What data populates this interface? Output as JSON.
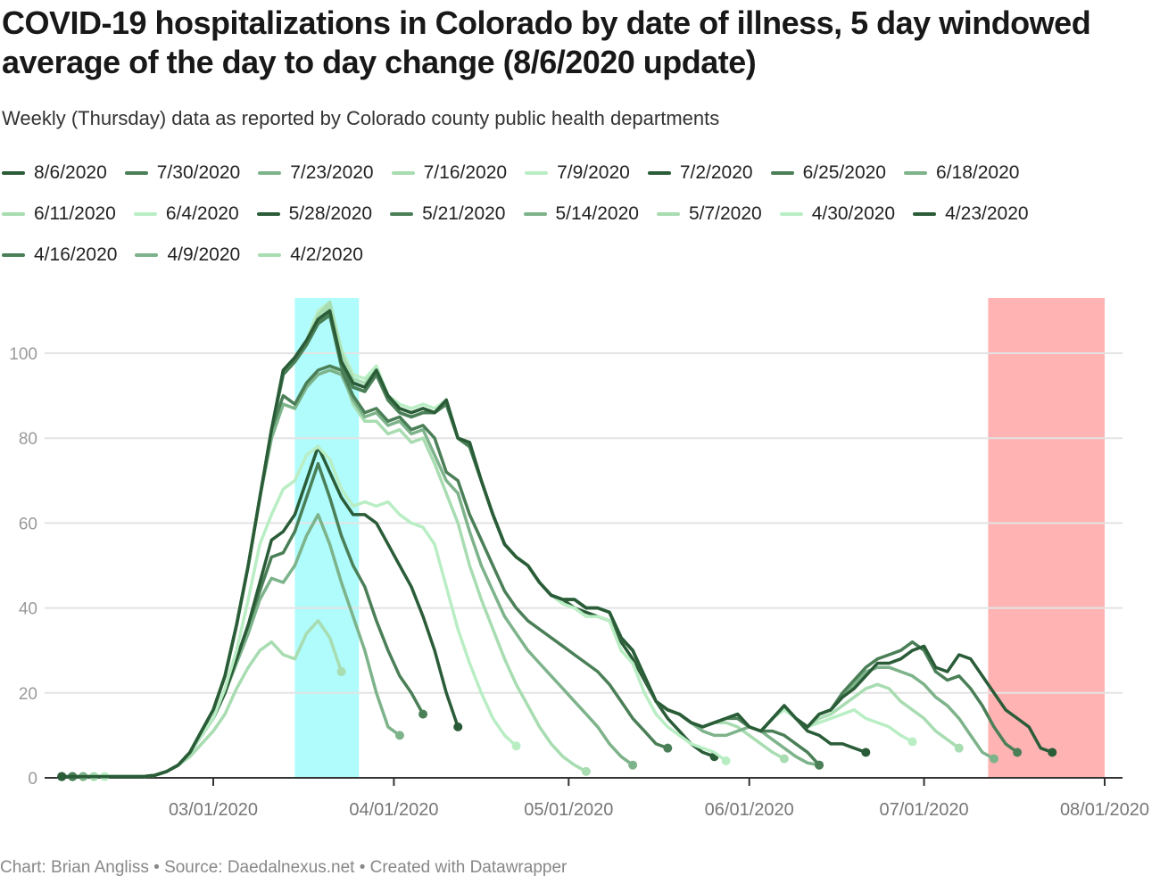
{
  "header": {
    "title": "COVID-19 hospitalizations in Colorado by date of illness, 5 day windowed average of the day to day change (8/6/2020 update)",
    "subtitle": "Weekly (Thursday) data as reported by Colorado county public health departments"
  },
  "footer": {
    "text": "Chart: Brian Angliss • Source: Daedalnexus.net • Created with Datawrapper"
  },
  "chart_data": {
    "type": "line",
    "title": "COVID-19 hospitalizations in Colorado by date of illness, 5 day windowed average of the day to day change (8/6/2020 update)",
    "xlabel": "",
    "ylabel": "",
    "x_unit": "days since 03/01/2020",
    "x_start_day": -26,
    "x_step_days": 2,
    "xlim": [
      -27,
      156
    ],
    "ylim": [
      0,
      113
    ],
    "yticks": [
      0,
      20,
      40,
      60,
      80,
      100
    ],
    "xticks": [
      {
        "day": 0,
        "label": "03/01/2020"
      },
      {
        "day": 31,
        "label": "04/01/2020"
      },
      {
        "day": 61,
        "label": "05/01/2020"
      },
      {
        "day": 92,
        "label": "06/01/2020"
      },
      {
        "day": 122,
        "label": "07/01/2020"
      },
      {
        "day": 153,
        "label": "08/01/2020"
      }
    ],
    "grid": true,
    "legend_position": "top",
    "highlight_bands": [
      {
        "name": "cyan-band",
        "start_day": 14,
        "end_day": 25,
        "color": "#b0fbfb"
      },
      {
        "name": "pink-band",
        "start_day": 133,
        "end_day": 153,
        "color": "#ffb3b3"
      }
    ],
    "series": [
      {
        "name": "8/6/2020",
        "color": "#2a5c38",
        "values": [
          0.3,
          0.3,
          0.3,
          0.3,
          0.3,
          0.3,
          0.3,
          0.3,
          0.6,
          1.5,
          3,
          6,
          11,
          16,
          24,
          36,
          50,
          66,
          82,
          96,
          99,
          103,
          108,
          110,
          98,
          93,
          92,
          96,
          90,
          87,
          86,
          87,
          86,
          89,
          80,
          79,
          70,
          62,
          55,
          52,
          50,
          46,
          43,
          42,
          42,
          40,
          40,
          39,
          33,
          30,
          24,
          18,
          16,
          15,
          13,
          12,
          13,
          14,
          15,
          12,
          11,
          14,
          17,
          14,
          12,
          15,
          16,
          19,
          21,
          24,
          27,
          27,
          28,
          30,
          31,
          26,
          25,
          29,
          28,
          24,
          20,
          16,
          14,
          12,
          7,
          6
        ]
      },
      {
        "name": "7/30/2020",
        "color": "#4a7f57",
        "values": [
          0.3,
          0.3,
          0.3,
          0.3,
          0.3,
          0.3,
          0.3,
          0.3,
          0.6,
          1.5,
          3,
          6,
          11,
          16,
          24,
          36,
          50,
          66,
          82,
          95,
          98,
          102,
          107,
          109,
          97,
          92,
          91,
          95,
          89,
          86,
          85,
          86,
          86,
          88,
          80,
          78,
          70,
          62,
          55,
          52,
          50,
          46,
          43,
          42,
          42,
          40,
          40,
          39,
          33,
          30,
          24,
          18,
          16,
          15,
          13,
          12,
          13,
          14,
          15,
          12,
          11,
          14,
          17,
          14,
          12,
          15,
          16,
          20,
          23,
          26,
          28,
          29,
          30,
          32,
          30,
          25,
          23,
          24,
          21,
          17,
          12,
          8,
          6
        ]
      },
      {
        "name": "7/23/2020",
        "color": "#7db38a",
        "values": [
          0.3,
          0.3,
          0.3,
          0.3,
          0.3,
          0.3,
          0.3,
          0.3,
          0.6,
          1.5,
          3,
          6,
          11,
          16,
          24,
          36,
          50,
          66,
          82,
          95,
          98,
          103,
          108,
          110,
          98,
          93,
          92,
          96,
          90,
          87,
          86,
          87,
          86,
          89,
          80,
          79,
          70,
          62,
          55,
          52,
          50,
          46,
          43,
          42,
          42,
          40,
          40,
          39,
          33,
          30,
          24,
          18,
          16,
          15,
          13,
          12,
          13,
          14,
          15,
          12,
          11,
          14,
          17,
          14,
          12,
          15,
          16,
          19,
          22,
          25,
          26,
          26,
          25,
          24,
          22,
          19,
          17,
          14,
          10,
          6,
          4.5
        ]
      },
      {
        "name": "7/16/2020",
        "color": "#a8dcb1",
        "values": [
          0.3,
          0.3,
          0.3,
          0.3,
          0.3,
          0.3,
          0.3,
          0.3,
          0.6,
          1.5,
          3,
          6,
          11,
          16,
          24,
          36,
          50,
          66,
          82,
          95,
          98,
          103,
          109,
          112,
          100,
          94,
          93,
          96,
          90,
          87,
          86,
          87,
          86,
          89,
          80,
          79,
          70,
          62,
          55,
          52,
          50,
          46,
          43,
          42,
          42,
          40,
          40,
          39,
          33,
          30,
          24,
          18,
          16,
          15,
          13,
          12,
          13,
          14,
          15,
          12,
          11,
          14,
          17,
          14,
          12,
          14,
          15,
          17,
          19,
          21,
          22,
          21,
          18,
          16,
          14,
          11,
          9,
          7
        ]
      },
      {
        "name": "7/9/2020",
        "color": "#b9eec4",
        "values": [
          0.3,
          0.3,
          0.3,
          0.3,
          0.3,
          0.3,
          0.3,
          0.3,
          0.6,
          1.5,
          3,
          6,
          11,
          16,
          24,
          36,
          50,
          66,
          82,
          95,
          98,
          103,
          110,
          112,
          101,
          95,
          94,
          97,
          90,
          88,
          87,
          88,
          87,
          89,
          80,
          79,
          70,
          62,
          55,
          52,
          50,
          46,
          43,
          42,
          42,
          40,
          40,
          39,
          33,
          30,
          24,
          18,
          16,
          15,
          13,
          12,
          13,
          14,
          15,
          12,
          11,
          14,
          16,
          14,
          12,
          13,
          14,
          15,
          16,
          14,
          13,
          12,
          10,
          8.5
        ]
      },
      {
        "name": "7/2/2020",
        "color": "#2a5c38",
        "values": [
          0.3,
          0.3,
          0.3,
          0.3,
          0.3,
          0.3,
          0.3,
          0.3,
          0.6,
          1.5,
          3,
          6,
          11,
          16,
          24,
          36,
          50,
          66,
          82,
          96,
          99,
          103,
          108,
          110,
          98,
          93,
          92,
          96,
          90,
          87,
          86,
          87,
          86,
          89,
          80,
          79,
          70,
          62,
          55,
          52,
          50,
          46,
          43,
          42,
          42,
          40,
          40,
          39,
          33,
          30,
          24,
          18,
          16,
          15,
          13,
          12,
          13,
          14,
          15,
          12,
          11,
          14,
          17,
          14,
          11,
          10,
          8,
          8,
          7,
          6
        ]
      },
      {
        "name": "6/25/2020",
        "color": "#4a7f57",
        "values": [
          0.3,
          0.3,
          0.3,
          0.3,
          0.3,
          0.3,
          0.3,
          0.3,
          0.6,
          1.5,
          3,
          6,
          11,
          16,
          24,
          36,
          50,
          66,
          82,
          95,
          98,
          102,
          107,
          109,
          97,
          92,
          91,
          95,
          89,
          86,
          85,
          86,
          86,
          88,
          80,
          78,
          70,
          62,
          55,
          52,
          50,
          46,
          43,
          42,
          42,
          40,
          40,
          39,
          33,
          30,
          24,
          18,
          16,
          15,
          13,
          12,
          13,
          14,
          14,
          12,
          11,
          11,
          10,
          8,
          6,
          3
        ]
      },
      {
        "name": "6/18/2020",
        "color": "#7db38a",
        "values": [
          0.3,
          0.3,
          0.3,
          0.3,
          0.3,
          0.3,
          0.3,
          0.3,
          0.6,
          1.5,
          3,
          6,
          11,
          16,
          24,
          36,
          50,
          66,
          82,
          95,
          98,
          102,
          107,
          109,
          97,
          92,
          91,
          95,
          89,
          86,
          85,
          86,
          86,
          88,
          80,
          78,
          70,
          62,
          55,
          52,
          50,
          46,
          43,
          42,
          42,
          40,
          40,
          39,
          33,
          30,
          24,
          18,
          16,
          15,
          13,
          11,
          10,
          10,
          11,
          12,
          11,
          9,
          7,
          5,
          3.5,
          3
        ]
      },
      {
        "name": "6/11/2020",
        "color": "#a8dcb1",
        "values": [
          0.3,
          0.3,
          0.3,
          0.3,
          0.3,
          0.3,
          0.3,
          0.3,
          0.6,
          1.5,
          3,
          6,
          11,
          16,
          24,
          36,
          50,
          66,
          82,
          95,
          98,
          102,
          108,
          111,
          99,
          93,
          92,
          95,
          89,
          86,
          85,
          86,
          86,
          88,
          80,
          78,
          70,
          62,
          55,
          52,
          50,
          46,
          43,
          42,
          42,
          40,
          40,
          39,
          33,
          30,
          24,
          18,
          16,
          15,
          13,
          12,
          13,
          13,
          12,
          10,
          8,
          6,
          4.5
        ]
      },
      {
        "name": "6/4/2020",
        "color": "#b9eec4",
        "values": [
          0.3,
          0.3,
          0.3,
          0.3,
          0.3,
          0.3,
          0.3,
          0.3,
          0.6,
          1.5,
          3,
          6,
          11,
          16,
          24,
          36,
          50,
          66,
          82,
          95,
          98,
          102,
          108,
          111,
          99,
          93,
          92,
          95,
          89,
          86,
          85,
          86,
          86,
          88,
          80,
          78,
          70,
          62,
          55,
          52,
          50,
          46,
          43,
          41,
          40,
          38,
          38,
          37,
          30,
          27,
          20,
          15,
          12,
          10,
          8,
          7,
          6,
          4
        ]
      },
      {
        "name": "5/28/2020",
        "color": "#2a5c38",
        "values": [
          0.3,
          0.3,
          0.3,
          0.3,
          0.3,
          0.3,
          0.3,
          0.3,
          0.6,
          1.5,
          3,
          6,
          11,
          16,
          24,
          36,
          50,
          66,
          82,
          95,
          98,
          102,
          107,
          109,
          97,
          92,
          91,
          95,
          89,
          86,
          85,
          86,
          86,
          88,
          80,
          78,
          70,
          62,
          55,
          52,
          50,
          46,
          43,
          42,
          40,
          39,
          38,
          37,
          32,
          28,
          23,
          18,
          14,
          11,
          8,
          6,
          5
        ]
      },
      {
        "name": "5/21/2020",
        "color": "#4a7f57",
        "values": [
          0.3,
          0.3,
          0.3,
          0.3,
          0.3,
          0.3,
          0.3,
          0.3,
          0.6,
          1.5,
          3,
          6,
          11,
          16,
          24,
          36,
          50,
          66,
          82,
          90,
          88,
          93,
          96,
          97,
          96,
          90,
          86,
          87,
          84,
          85,
          82,
          83,
          80,
          72,
          70,
          62,
          56,
          50,
          44,
          40,
          37,
          35,
          33,
          31,
          29,
          27,
          25,
          22,
          18,
          14,
          11,
          8,
          7
        ]
      },
      {
        "name": "5/14/2020",
        "color": "#7db38a",
        "values": [
          0.3,
          0.3,
          0.3,
          0.3,
          0.3,
          0.3,
          0.3,
          0.3,
          0.6,
          1.5,
          3,
          6,
          11,
          16,
          24,
          36,
          50,
          66,
          80,
          88,
          87,
          92,
          95,
          96,
          95,
          89,
          85,
          86,
          83,
          84,
          81,
          82,
          76,
          70,
          67,
          58,
          50,
          44,
          38,
          34,
          30,
          27,
          24,
          21,
          18,
          15,
          12,
          8,
          5,
          3
        ]
      },
      {
        "name": "5/7/2020",
        "color": "#a8dcb1",
        "values": [
          0.3,
          0.3,
          0.3,
          0.3,
          0.3,
          0.3,
          0.3,
          0.3,
          0.6,
          1.5,
          3,
          6,
          11,
          16,
          24,
          36,
          50,
          66,
          80,
          88,
          87,
          92,
          95,
          96,
          96,
          88,
          84,
          84,
          81,
          82,
          79,
          80,
          74,
          67,
          60,
          50,
          42,
          35,
          28,
          22,
          17,
          12,
          8,
          5,
          3,
          1.5
        ]
      },
      {
        "name": "4/30/2020",
        "color": "#b9eec4",
        "values": [
          0.3,
          0.3,
          0.3,
          0.3,
          0.3,
          0.3,
          0.3,
          0.3,
          0.6,
          1.5,
          3,
          6,
          10,
          14,
          21,
          30,
          42,
          55,
          62,
          68,
          70,
          76,
          78,
          75,
          68,
          64,
          65,
          64,
          65,
          62,
          60,
          59,
          55,
          45,
          35,
          27,
          20,
          14,
          10,
          7.5
        ]
      },
      {
        "name": "4/23/2020",
        "color": "#2a5c38",
        "values": [
          0.3,
          0.3,
          0.3,
          0.3,
          0.3,
          0.3,
          0.3,
          0.3,
          0.6,
          1.5,
          3,
          6,
          10,
          14,
          20,
          28,
          36,
          46,
          56,
          58,
          62,
          70,
          78,
          72,
          66,
          62,
          62,
          60,
          55,
          50,
          45,
          38,
          30,
          20,
          12
        ]
      },
      {
        "name": "4/16/2020",
        "color": "#4a7f57",
        "values": [
          0.3,
          0.3,
          0.3,
          0.3,
          0.3,
          0.3,
          0.3,
          0.3,
          0.6,
          1.5,
          3,
          6,
          10,
          14,
          20,
          28,
          36,
          44,
          52,
          53,
          58,
          66,
          74,
          66,
          57,
          50,
          45,
          37,
          30,
          24,
          20,
          15
        ]
      },
      {
        "name": "4/9/2020",
        "color": "#7db38a",
        "values": [
          0.3,
          0.3,
          0.3,
          0.3,
          0.3,
          0.3,
          0.3,
          0.3,
          0.6,
          1.5,
          3,
          6,
          10,
          14,
          20,
          27,
          34,
          42,
          47,
          46,
          50,
          57,
          62,
          55,
          46,
          38,
          30,
          20,
          12,
          10
        ]
      },
      {
        "name": "4/2/2020",
        "color": "#a8dcb1",
        "values": [
          0.3,
          0.3,
          0.3,
          0.3,
          0.3,
          0.3,
          0.3,
          0.3,
          0.6,
          1.5,
          3,
          5,
          8,
          11,
          15,
          21,
          26,
          30,
          32,
          29,
          28,
          34,
          37,
          33,
          25
        ]
      }
    ]
  }
}
